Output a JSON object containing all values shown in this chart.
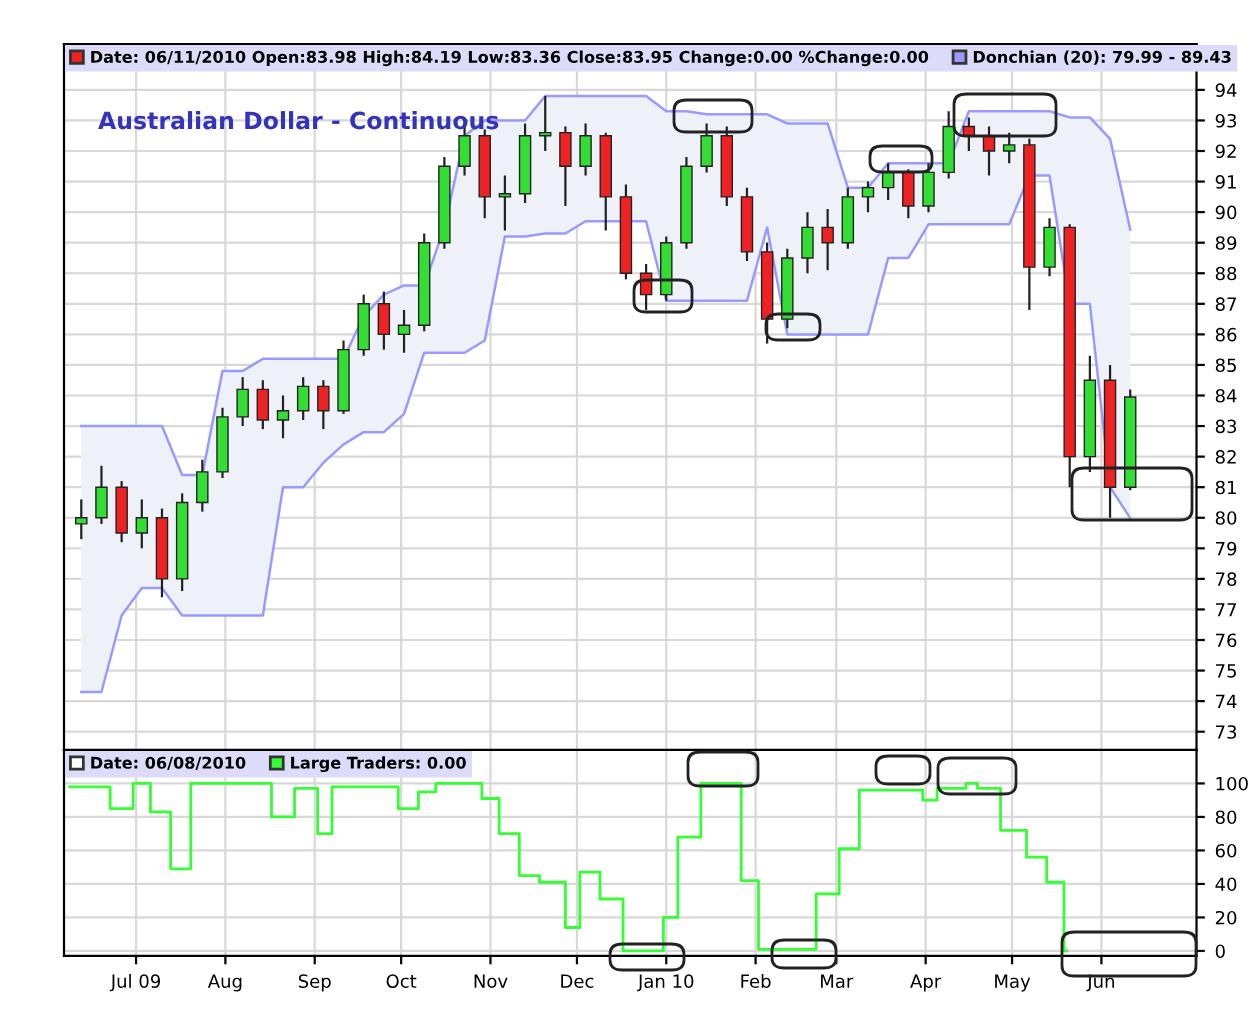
{
  "chart_data": [
    {
      "type": "candlestick",
      "title": "Australian Dollar - Continuous",
      "legend": "top",
      "grid": true,
      "tick_labels": "y",
      "x": [
        "2009-06-12",
        "2009-06-19",
        "2009-06-26",
        "2009-07-03",
        "2009-07-10",
        "2009-07-17",
        "2009-07-24",
        "2009-07-31",
        "2009-08-07",
        "2009-08-14",
        "2009-08-21",
        "2009-08-28",
        "2009-09-04",
        "2009-09-11",
        "2009-09-18",
        "2009-09-25",
        "2009-10-02",
        "2009-10-09",
        "2009-10-16",
        "2009-10-23",
        "2009-10-30",
        "2009-11-06",
        "2009-11-13",
        "2009-11-20",
        "2009-11-27",
        "2009-12-04",
        "2009-12-11",
        "2009-12-18",
        "2009-12-25",
        "2010-01-01",
        "2010-01-08",
        "2010-01-15",
        "2010-01-22",
        "2010-01-29",
        "2010-02-05",
        "2010-02-12",
        "2010-02-19",
        "2010-02-26",
        "2010-03-05",
        "2010-03-12",
        "2010-03-19",
        "2010-03-26",
        "2010-04-02",
        "2010-04-09",
        "2010-04-16",
        "2010-04-23",
        "2010-04-30",
        "2010-05-07",
        "2010-05-14",
        "2010-05-21",
        "2010-05-28",
        "2010-06-04",
        "2010-06-11"
      ],
      "xlim": [
        "2009-06-06",
        "2010-07-04"
      ],
      "xticks": [
        {
          "value": "2009-07-01",
          "label": null
        },
        {
          "value": "2009-08-01",
          "label": null
        },
        {
          "value": "2009-09-01",
          "label": null
        },
        {
          "value": "2009-10-01",
          "label": null
        },
        {
          "value": "2009-11-01",
          "label": null
        },
        {
          "value": "2009-12-01",
          "label": null
        },
        {
          "value": "2010-01-01",
          "label": null
        },
        {
          "value": "2010-02-01",
          "label": null
        },
        {
          "value": "2010-03-01",
          "label": null
        },
        {
          "value": "2010-04-01",
          "label": null
        },
        {
          "value": "2010-05-01",
          "label": null
        },
        {
          "value": "2010-06-01",
          "label": null
        }
      ],
      "ylim": [
        72.4,
        95.5
      ],
      "yticks": [
        73,
        74,
        75,
        76,
        77,
        78,
        79,
        80,
        81,
        82,
        83,
        84,
        85,
        86,
        87,
        88,
        89,
        90,
        91,
        92,
        93,
        94
      ],
      "series": [
        {
          "type": "area",
          "name": "Donchian (20): 79.99 - 89.43",
          "color": "#9999ff",
          "values": [
            83,
            83,
            83,
            83,
            83,
            81.4,
            81.4,
            84.8,
            84.8,
            85.2,
            85.2,
            85.2,
            85.2,
            85.2,
            86.6,
            87.3,
            87.6,
            87.6,
            89.5,
            92.5,
            93,
            93,
            93,
            93.8,
            93.8,
            93.8,
            93.8,
            93.8,
            93.8,
            93.3,
            93.3,
            93.2,
            93.2,
            93.2,
            93.2,
            92.9,
            92.9,
            92.9,
            90.8,
            90.8,
            91.6,
            91.6,
            91.6,
            91.6,
            93.3,
            93.3,
            93.3,
            93.3,
            93.3,
            93.1,
            93.1,
            92.4,
            89.43
          ],
          "marker": "none"
        },
        {
          "type": "line",
          "color": "#9999ff",
          "values": [
            74.3,
            74.3,
            76.8,
            77.7,
            77.7,
            76.8,
            76.8,
            76.8,
            76.8,
            76.8,
            81,
            81,
            81.8,
            82.4,
            82.8,
            82.8,
            83.4,
            85.4,
            85.4,
            85.4,
            85.8,
            89.2,
            89.2,
            89.3,
            89.3,
            89.7,
            89.7,
            89.7,
            89.7,
            87.1,
            87.1,
            87.1,
            87.1,
            87.1,
            89.5,
            86,
            86,
            86,
            86,
            86,
            88.5,
            88.5,
            89.6,
            89.6,
            89.6,
            89.6,
            89.6,
            91.2,
            91.2,
            87,
            87,
            81,
            79.99
          ]
        },
        {
          "type": "candlestick",
          "name": "Date: 06/11/2010 Open:83.98 High:84.19 Low:83.36 Close:83.95 Change:0.00 %Change:0.00",
          "color": "#ee2222",
          "colors": [
            "#33dd33",
            "#33dd33",
            "#ee2222",
            "#33dd33",
            "#ee2222",
            "#33dd33",
            "#33dd33",
            "#33dd33",
            "#33dd33",
            "#ee2222",
            "#33dd33",
            "#33dd33",
            "#ee2222",
            "#33dd33",
            "#33dd33",
            "#ee2222",
            "#33dd33",
            "#33dd33",
            "#33dd33",
            "#33dd33",
            "#ee2222",
            "#33dd33",
            "#33dd33",
            "#33dd33",
            "#ee2222",
            "#33dd33",
            "#ee2222",
            "#ee2222",
            "#ee2222",
            "#33dd33",
            "#33dd33",
            "#33dd33",
            "#ee2222",
            "#ee2222",
            "#ee2222",
            "#33dd33",
            "#33dd33",
            "#ee2222",
            "#33dd33",
            "#33dd33",
            "#33dd33",
            "#ee2222",
            "#33dd33",
            "#33dd33",
            "#ee2222",
            "#ee2222",
            "#33dd33",
            "#ee2222",
            "#33dd33",
            "#ee2222",
            "#33dd33",
            "#ee2222",
            "#33dd33"
          ],
          "ohlc": [
            [
              79.8,
              80.6,
              79.3,
              80.0
            ],
            [
              80.0,
              81.7,
              79.8,
              81.0
            ],
            [
              81.0,
              81.2,
              79.2,
              79.5
            ],
            [
              79.5,
              80.6,
              79.0,
              80.0
            ],
            [
              80.0,
              80.3,
              77.4,
              78.0
            ],
            [
              78.0,
              80.8,
              77.6,
              80.5
            ],
            [
              80.5,
              81.9,
              80.2,
              81.5
            ],
            [
              81.5,
              83.6,
              81.3,
              83.3
            ],
            [
              83.3,
              84.6,
              83.0,
              84.2
            ],
            [
              84.2,
              84.5,
              82.9,
              83.2
            ],
            [
              83.2,
              84.0,
              82.6,
              83.5
            ],
            [
              83.5,
              84.6,
              83.2,
              84.3
            ],
            [
              84.3,
              84.5,
              82.9,
              83.5
            ],
            [
              83.5,
              85.8,
              83.4,
              85.5
            ],
            [
              85.5,
              87.3,
              85.3,
              87.0
            ],
            [
              87.0,
              87.4,
              85.5,
              86.0
            ],
            [
              86.0,
              86.8,
              85.4,
              86.3
            ],
            [
              86.3,
              89.3,
              86.1,
              89.0
            ],
            [
              89.0,
              91.8,
              88.8,
              91.5
            ],
            [
              91.5,
              92.9,
              91.2,
              92.5
            ],
            [
              92.5,
              92.7,
              89.8,
              90.5
            ],
            [
              90.5,
              91.2,
              89.4,
              90.6
            ],
            [
              90.6,
              92.9,
              90.3,
              92.5
            ],
            [
              92.5,
              93.8,
              92.0,
              92.6
            ],
            [
              92.6,
              92.8,
              90.2,
              91.5
            ],
            [
              91.5,
              92.9,
              91.2,
              92.5
            ],
            [
              92.5,
              92.6,
              89.4,
              90.5
            ],
            [
              90.5,
              90.9,
              87.8,
              88.0
            ],
            [
              88.0,
              88.3,
              86.8,
              87.3
            ],
            [
              87.3,
              89.2,
              87.1,
              89.0
            ],
            [
              89.0,
              91.8,
              88.8,
              91.5
            ],
            [
              91.5,
              92.9,
              91.3,
              92.5
            ],
            [
              92.5,
              92.8,
              90.2,
              90.5
            ],
            [
              90.5,
              90.8,
              88.4,
              88.7
            ],
            [
              88.7,
              89.0,
              85.7,
              86.5
            ],
            [
              86.5,
              88.8,
              86.2,
              88.5
            ],
            [
              88.5,
              90.0,
              88.0,
              89.5
            ],
            [
              89.5,
              90.1,
              88.1,
              89.0
            ],
            [
              89.0,
              90.8,
              88.8,
              90.5
            ],
            [
              90.5,
              91.0,
              90.0,
              90.8
            ],
            [
              90.8,
              91.6,
              90.4,
              91.3
            ],
            [
              91.3,
              91.4,
              89.8,
              90.2
            ],
            [
              90.2,
              91.6,
              90.0,
              91.3
            ],
            [
              91.3,
              93.3,
              91.1,
              92.8
            ],
            [
              92.8,
              93.1,
              92.0,
              92.5
            ],
            [
              92.5,
              92.8,
              91.2,
              92.0
            ],
            [
              92.0,
              92.6,
              91.6,
              92.2
            ],
            [
              92.2,
              92.4,
              86.8,
              88.2
            ],
            [
              88.2,
              89.8,
              87.9,
              89.5
            ],
            [
              89.5,
              89.6,
              81.0,
              82.0
            ],
            [
              82.0,
              85.3,
              81.5,
              84.5
            ],
            [
              84.5,
              85.0,
              80.0,
              81.0
            ],
            [
              81.0,
              84.2,
              80.9,
              83.95
            ]
          ]
        }
      ]
    },
    {
      "type": "step",
      "legend": "top",
      "grid": true,
      "annotations": [
        "Date: 06/08/2010"
      ],
      "xlim": [
        "2009-06-06",
        "2010-07-04"
      ],
      "xticks": [
        {
          "value": "2009-07-01",
          "label": "Jul 09"
        },
        {
          "value": "2009-08-01",
          "label": "Aug"
        },
        {
          "value": "2009-09-01",
          "label": "Sep"
        },
        {
          "value": "2009-10-01",
          "label": "Oct"
        },
        {
          "value": "2009-11-01",
          "label": "Nov"
        },
        {
          "value": "2009-12-01",
          "label": "Dec"
        },
        {
          "value": "2010-01-01",
          "label": "Jan 10"
        },
        {
          "value": "2010-02-01",
          "label": "Feb"
        },
        {
          "value": "2010-03-01",
          "label": "Mar"
        },
        {
          "value": "2010-04-01",
          "label": "Apr"
        },
        {
          "value": "2010-05-01",
          "label": "May"
        },
        {
          "value": "2010-06-01",
          "label": "Jun"
        }
      ],
      "ylim": [
        -3,
        120
      ],
      "yticks": [
        0,
        20,
        40,
        60,
        80,
        100
      ],
      "series": [
        {
          "type": "step",
          "name": "Large Traders: 0.00",
          "color": "#33ff33",
          "x": [
            "2009-06-08",
            "2009-06-22",
            "2009-06-30",
            "2009-07-06",
            "2009-07-13",
            "2009-07-20",
            "2009-08-17",
            "2009-08-25",
            "2009-09-02",
            "2009-09-07",
            "2009-09-30",
            "2009-10-07",
            "2009-10-13",
            "2009-10-29",
            "2009-11-04",
            "2009-11-11",
            "2009-11-18",
            "2009-11-27",
            "2009-12-02",
            "2009-12-09",
            "2009-12-17",
            "2009-12-31",
            "2010-01-05",
            "2010-01-13",
            "2010-01-27",
            "2010-02-02",
            "2010-02-22",
            "2010-03-02",
            "2010-03-09",
            "2010-03-31",
            "2010-04-05",
            "2010-04-15",
            "2010-04-19",
            "2010-04-27",
            "2010-05-06",
            "2010-05-13",
            "2010-05-19",
            "2010-05-20"
          ],
          "values": [
            98,
            85,
            100,
            83,
            49,
            100,
            80,
            97,
            70,
            98,
            85,
            95,
            100,
            91,
            70,
            45,
            41,
            14,
            47,
            31,
            0,
            20,
            68,
            100,
            42,
            1,
            34,
            61,
            96,
            90,
            97,
            100,
            97,
            72,
            56,
            41,
            0,
            0
          ]
        }
      ]
    }
  ]
}
